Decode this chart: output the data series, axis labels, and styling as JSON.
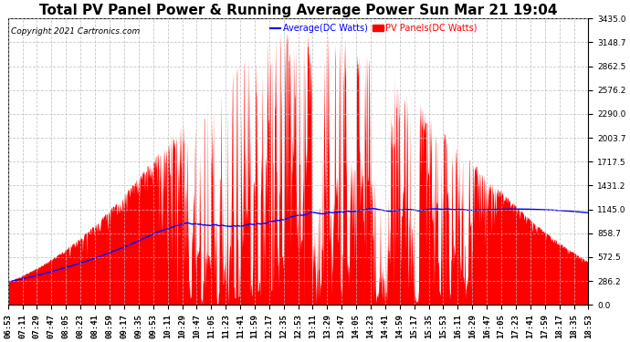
{
  "title": "Total PV Panel Power & Running Average Power Sun Mar 21 19:04",
  "copyright": "Copyright 2021 Cartronics.com",
  "legend_avg": "Average(DC Watts)",
  "legend_pv": "PV Panels(DC Watts)",
  "yticks": [
    0.0,
    286.2,
    572.5,
    858.7,
    1145.0,
    1431.2,
    1717.5,
    2003.7,
    2290.0,
    2576.2,
    2862.5,
    3148.7,
    3435.0
  ],
  "ymax": 3435.0,
  "ymin": 0.0,
  "bg_color": "#ffffff",
  "grid_color": "#bbbbbb",
  "pv_fill_color": "#ff0000",
  "avg_line_color": "#0000ff",
  "title_fontsize": 11,
  "label_fontsize": 7,
  "tick_fontsize": 6.5,
  "x_tick_interval_min": 18,
  "x_start_min": 413,
  "x_end_min": 1133,
  "num_points": 1440
}
